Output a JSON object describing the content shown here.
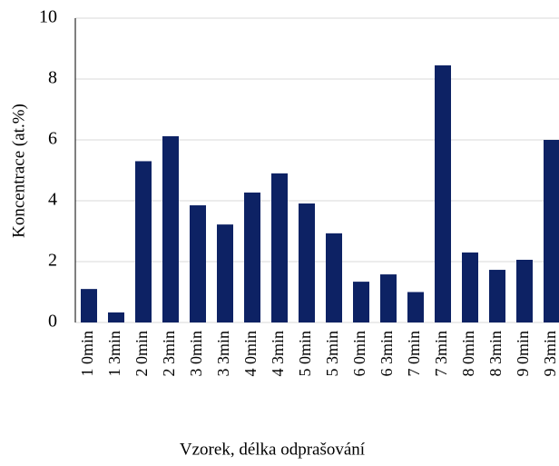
{
  "chart_data": {
    "type": "bar",
    "x_label": "Vzorek, délka odprašování",
    "y_label": "Koncentrace (at.%)",
    "categories": [
      "1 0min",
      "1 3min",
      "2 0min",
      "2 3min",
      "3 0min",
      "3 3min",
      "4 0min",
      "4 3min",
      "5 0min",
      "5 3min",
      "6 0min",
      "6 3min",
      "7 0min",
      "7 3min",
      "8 0min",
      "8 3min",
      "9 0min",
      "9 3min"
    ],
    "values": [
      1.1,
      0.33,
      5.3,
      6.12,
      3.85,
      3.22,
      4.27,
      4.9,
      3.91,
      2.93,
      1.34,
      1.58,
      1.0,
      8.45,
      2.3,
      1.73,
      2.06,
      6.0
    ],
    "color": "#0d2264",
    "ylim": [
      0,
      10
    ],
    "yticks": [
      0,
      2,
      4,
      6,
      8,
      10
    ],
    "grid": true
  }
}
